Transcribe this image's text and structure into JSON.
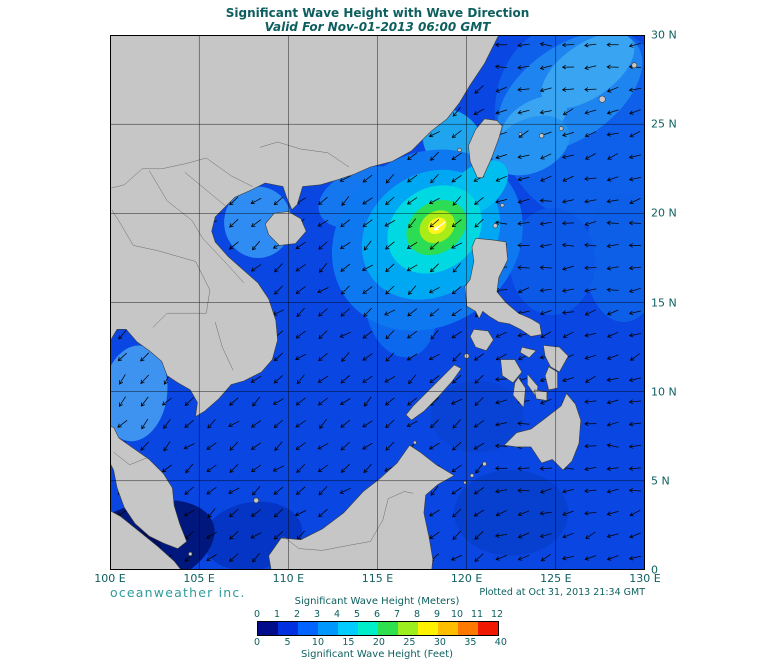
{
  "title": "Significant Wave Height with Wave Direction",
  "subtitle": "Valid For Nov-01-2013 06:00 GMT",
  "branding": "oceanweather inc.",
  "plotted_at": "Plotted at Oct 31, 2013 21:34 GMT",
  "axes": {
    "x_ticks": [
      "100 E",
      "105 E",
      "110 E",
      "115 E",
      "120 E",
      "125 E",
      "130 E"
    ],
    "y_ticks": [
      "30 N",
      "25 N",
      "20 N",
      "15 N",
      "10 N",
      "5 N",
      "0"
    ]
  },
  "legend": {
    "meters_label": "Significant Wave Height (Meters)",
    "feet_label": "Significant Wave Height (Feet)",
    "meters_ticks": [
      "0",
      "1",
      "2",
      "3",
      "4",
      "5",
      "6",
      "7",
      "8",
      "9",
      "10",
      "11",
      "12"
    ],
    "feet_ticks": [
      "0",
      "5",
      "10",
      "15",
      "20",
      "25",
      "30",
      "35",
      "40"
    ],
    "band_colors": [
      "#000C8A",
      "#0030E0",
      "#0064FF",
      "#0098FF",
      "#00CCFF",
      "#00EFC8",
      "#2EE04E",
      "#9CEE1E",
      "#FFF200",
      "#FFBE00",
      "#FF7800",
      "#F01800"
    ]
  },
  "colors": {
    "text": "#0d5f5f",
    "branding_text": "#2f9b9b",
    "ocean": "#0946E2",
    "land": "#C6C6C6",
    "coastline": "#3C3C3C",
    "border_line": "#6a6a6a",
    "grid_line": "#000000",
    "arrow": "#000000",
    "storm_arrow": "#ffffff",
    "frame": "#000000"
  }
}
